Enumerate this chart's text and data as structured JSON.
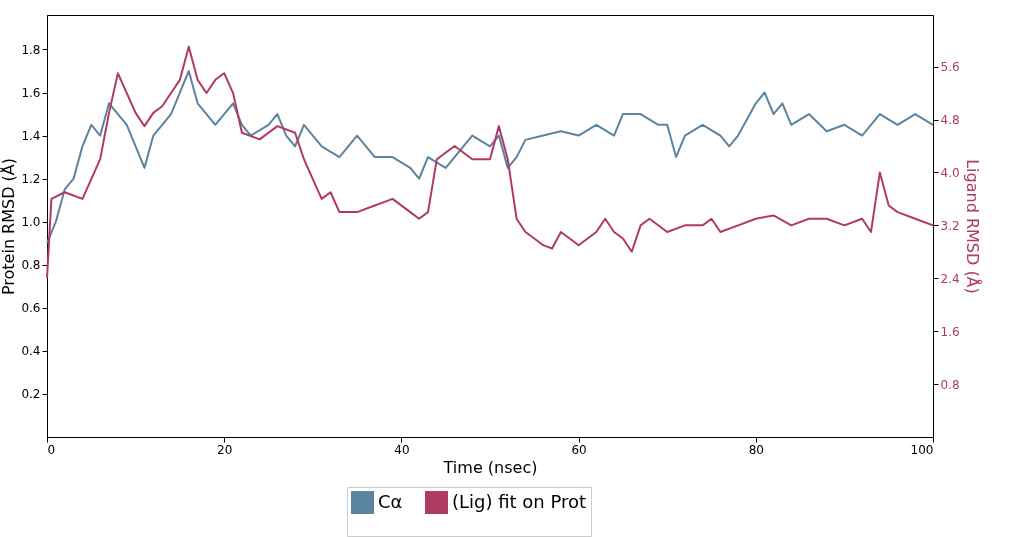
{
  "chart_data": {
    "type": "line",
    "xlabel": "Time (nsec)",
    "ylabel": "Protein RMSD (Å)",
    "y2label": "Ligand RMSD (Å)",
    "xlim": [
      0,
      100
    ],
    "xticks": [
      0,
      20,
      40,
      60,
      80,
      100
    ],
    "ylim": [
      0,
      1.96
    ],
    "yticks": [
      0.2,
      0.4,
      0.6,
      0.8,
      {
        "value": 1,
        "label": "1.0"
      },
      1.2,
      1.4,
      1.6,
      1.8
    ],
    "y2lim": [
      0,
      6.38
    ],
    "y2ticks": [
      0.8,
      1.6,
      2.4,
      3.2,
      {
        "value": 4,
        "label": "4.0"
      },
      4.8,
      5.6
    ],
    "legend": "bottom",
    "line_style": "solid",
    "series": [
      {
        "name": "Cα",
        "color": "#5b84a0",
        "x": [
          0,
          0.5,
          1,
          2,
          3,
          4,
          5,
          6,
          7,
          8,
          9,
          10,
          11,
          12,
          13,
          14,
          15,
          16,
          17,
          18,
          19,
          20,
          21,
          22,
          23,
          25,
          26,
          27,
          28,
          29,
          30,
          31,
          33,
          35,
          37,
          39,
          41,
          42,
          43,
          45,
          46,
          48,
          50,
          51,
          52,
          53,
          54,
          56,
          58,
          60,
          62,
          64,
          65,
          67,
          69,
          70,
          71,
          72,
          74,
          76,
          77,
          78,
          80,
          81,
          82,
          83,
          84,
          86,
          88,
          90,
          92,
          94,
          96,
          98,
          100
        ],
        "values": [
          0.9,
          0.95,
          1.0,
          1.15,
          1.2,
          1.35,
          1.45,
          1.4,
          1.55,
          1.5,
          1.45,
          1.35,
          1.25,
          1.4,
          1.45,
          1.5,
          1.6,
          1.7,
          1.55,
          1.5,
          1.45,
          1.5,
          1.55,
          1.45,
          1.4,
          1.45,
          1.5,
          1.4,
          1.35,
          1.45,
          1.4,
          1.35,
          1.3,
          1.4,
          1.3,
          1.3,
          1.25,
          1.2,
          1.3,
          1.25,
          1.3,
          1.4,
          1.35,
          1.4,
          1.25,
          1.3,
          1.38,
          1.4,
          1.42,
          1.4,
          1.45,
          1.4,
          1.5,
          1.5,
          1.45,
          1.45,
          1.3,
          1.4,
          1.45,
          1.4,
          1.35,
          1.4,
          1.55,
          1.6,
          1.5,
          1.55,
          1.45,
          1.5,
          1.42,
          1.45,
          1.4,
          1.5,
          1.45,
          1.5,
          1.45
        ]
      },
      {
        "name": "(Lig) fit on Prot",
        "color": "#b03a64",
        "axis": "y2",
        "x": [
          0,
          0.5,
          2,
          4,
          5,
          6,
          7,
          8,
          9,
          10,
          11,
          12,
          13,
          14,
          15,
          16,
          17,
          18,
          19,
          20,
          21,
          22,
          24,
          26,
          28,
          29,
          30,
          31,
          32,
          33,
          35,
          37,
          39,
          41,
          42,
          43,
          44,
          46,
          48,
          50,
          51,
          52,
          53,
          54,
          55,
          56,
          57,
          58,
          59,
          60,
          62,
          63,
          64,
          65,
          66,
          67,
          68,
          70,
          72,
          74,
          75,
          76,
          78,
          80,
          82,
          84,
          86,
          88,
          90,
          92,
          93,
          94,
          95,
          96,
          98,
          100
        ],
        "values": [
          2.4,
          3.6,
          3.7,
          3.6,
          3.9,
          4.2,
          4.9,
          5.5,
          5.2,
          4.9,
          4.7,
          4.9,
          5.0,
          5.2,
          5.4,
          5.9,
          5.4,
          5.2,
          5.4,
          5.5,
          5.2,
          4.6,
          4.5,
          4.7,
          4.6,
          4.2,
          3.9,
          3.6,
          3.7,
          3.4,
          3.4,
          3.5,
          3.6,
          3.4,
          3.3,
          3.4,
          4.2,
          4.4,
          4.2,
          4.2,
          4.7,
          4.2,
          3.3,
          3.1,
          3.0,
          2.9,
          2.85,
          3.1,
          3.0,
          2.9,
          3.1,
          3.3,
          3.1,
          3.0,
          2.8,
          3.2,
          3.3,
          3.1,
          3.2,
          3.2,
          3.3,
          3.1,
          3.2,
          3.3,
          3.35,
          3.2,
          3.3,
          3.3,
          3.2,
          3.3,
          3.1,
          4.0,
          3.5,
          3.4,
          3.3,
          3.2
        ]
      }
    ]
  }
}
